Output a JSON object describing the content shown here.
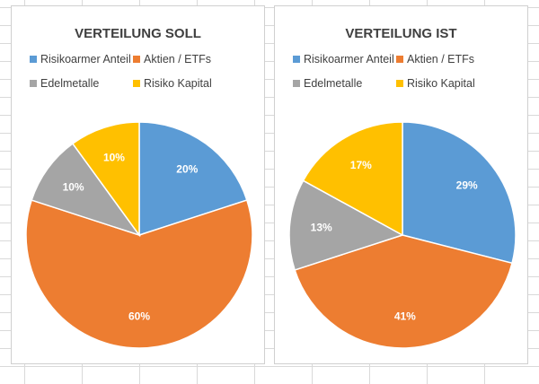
{
  "chart_data": [
    {
      "type": "pie",
      "title": "VERTEILUNG SOLL",
      "categories": [
        "Risikoarmer Anteil",
        "Aktien / ETFs",
        "Edelmetalle",
        "Risiko Kapital"
      ],
      "values": [
        20,
        60,
        10,
        10
      ],
      "labels": [
        "20%",
        "60%",
        "10%",
        "10%"
      ],
      "colors": [
        "#5b9bd5",
        "#ed7d31",
        "#a5a5a5",
        "#ffc000"
      ],
      "legend": "top"
    },
    {
      "type": "pie",
      "title": "VERTEILUNG IST",
      "categories": [
        "Risikoarmer Anteil",
        "Aktien / ETFs",
        "Edelmetalle",
        "Risiko Kapital"
      ],
      "values": [
        29,
        41,
        13,
        17
      ],
      "labels": [
        "29%",
        "41%",
        "13%",
        "17%"
      ],
      "colors": [
        "#5b9bd5",
        "#ed7d31",
        "#a5a5a5",
        "#ffc000"
      ],
      "legend": "top"
    }
  ]
}
